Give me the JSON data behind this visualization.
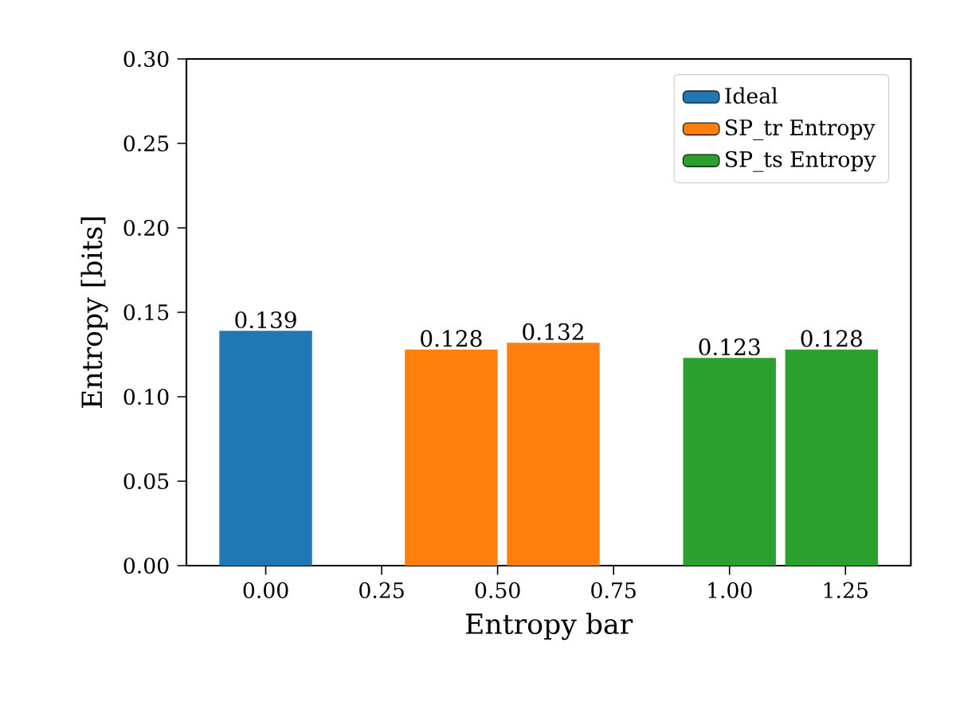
{
  "chart_data": {
    "type": "bar",
    "xlabel": "Entropy bar",
    "ylabel": "Entropy [bits]",
    "series": [
      {
        "name": "Ideal",
        "color": "#1f77b4",
        "x": [
          0
        ],
        "values": [
          0.139
        ]
      },
      {
        "name": "SP_tr Entropy",
        "color": "#ff7f0e",
        "x": [
          0.4,
          0.62
        ],
        "values": [
          0.128,
          0.132
        ]
      },
      {
        "name": "SP_ts Entropy",
        "color": "#2ca02c",
        "x": [
          1.0,
          1.22
        ],
        "values": [
          0.123,
          0.128
        ]
      }
    ],
    "xlim": [
      -0.171,
      1.391
    ],
    "xticks": [
      {
        "value": 0,
        "label": "0.00"
      },
      0.25,
      {
        "value": 0.5,
        "label": "0.50"
      },
      0.75,
      {
        "value": 1,
        "label": "1.00"
      },
      1.25
    ],
    "ylim": [
      0,
      0.3
    ],
    "yticks": [
      {
        "value": 0,
        "label": "0.00"
      },
      0.05,
      {
        "value": 0.1,
        "label": "0.10"
      },
      0.15,
      {
        "value": 0.2,
        "label": "0.20"
      },
      0.25,
      {
        "value": 0.3,
        "label": "0.30"
      }
    ],
    "data_labels": true,
    "legend": "top right",
    "grid": false
  }
}
